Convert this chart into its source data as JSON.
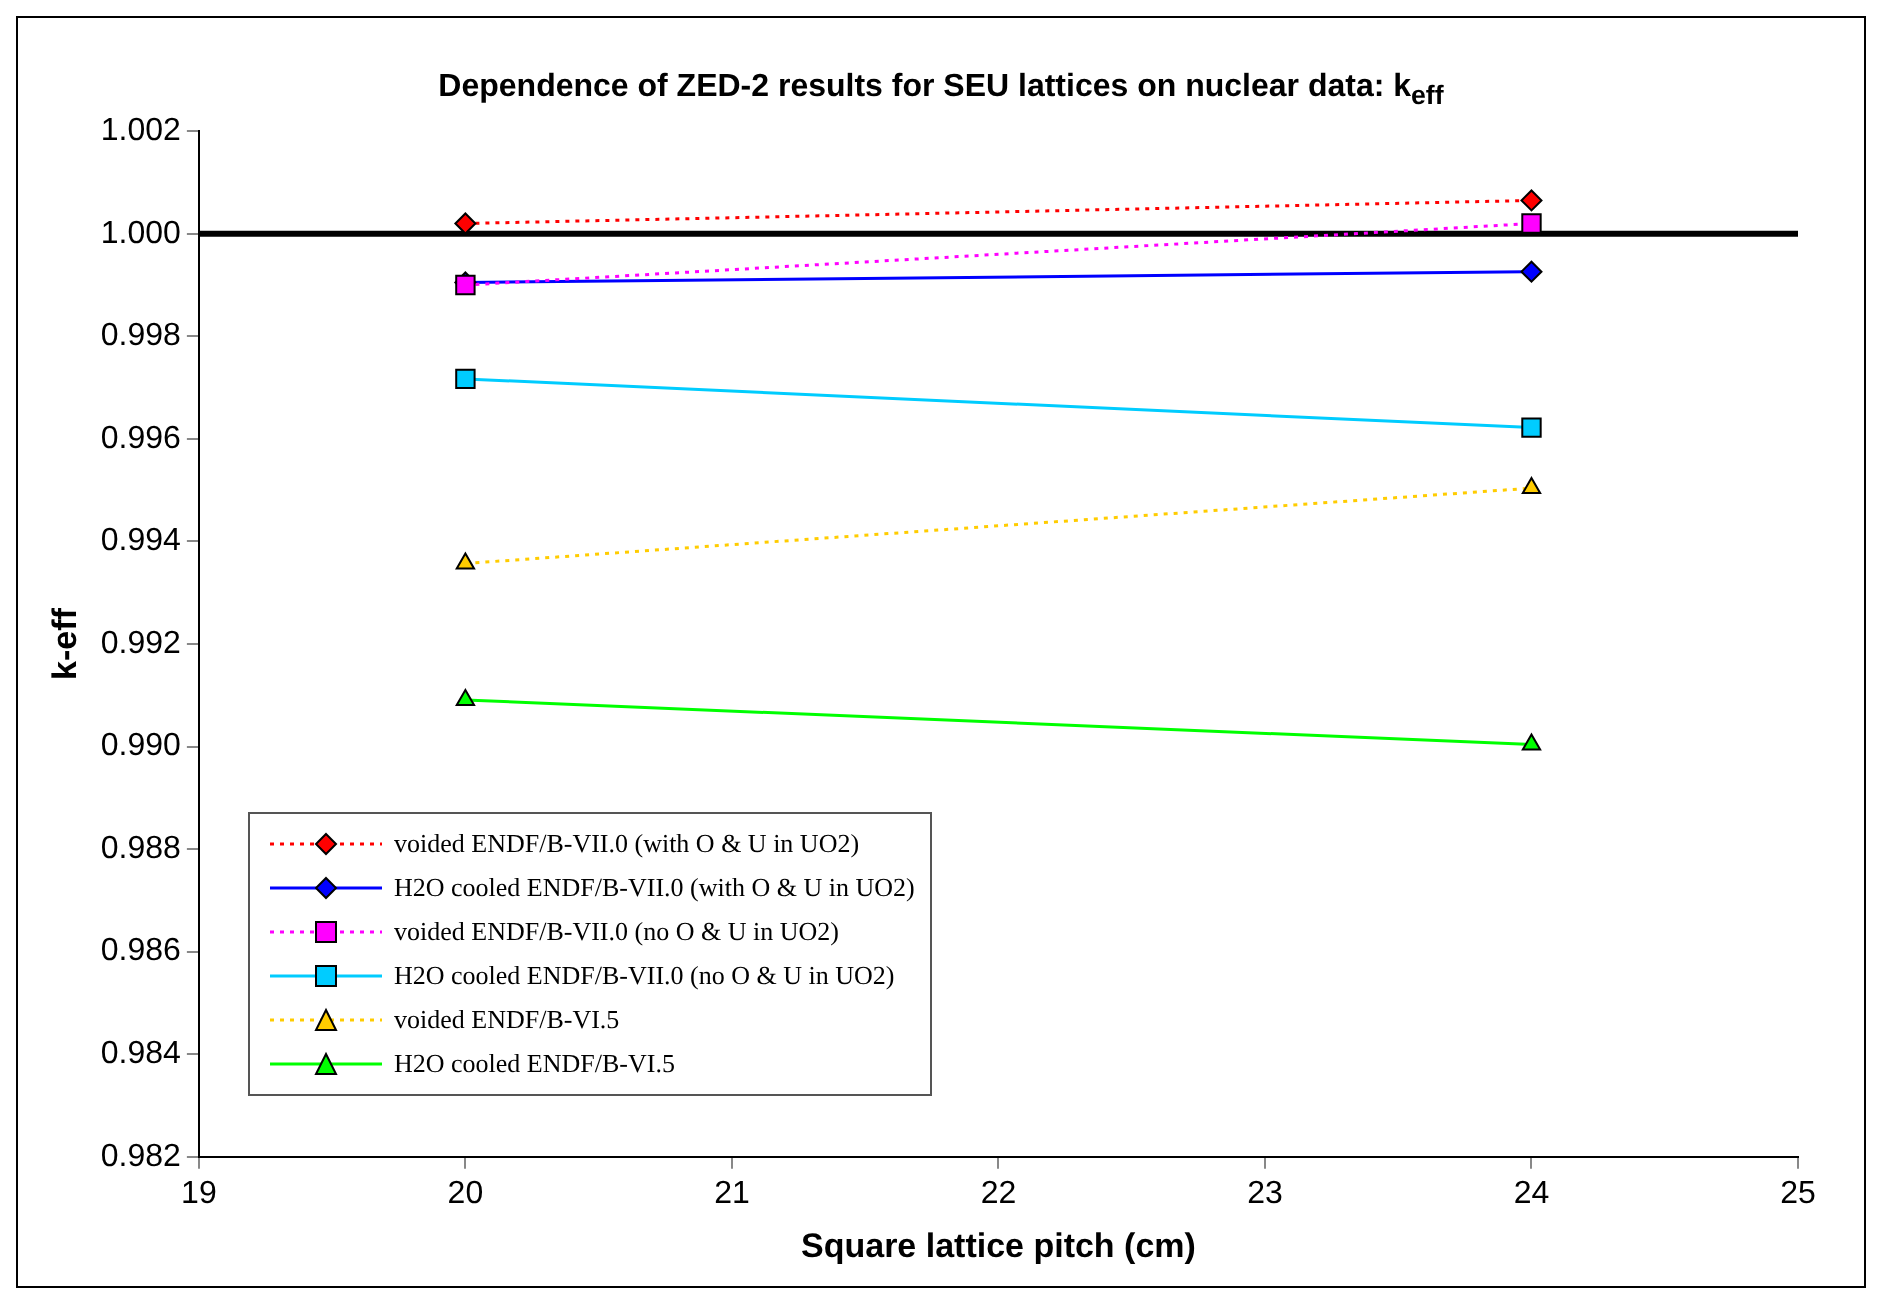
{
  "chart_data": {
    "type": "line",
    "title": "Dependence of ZED-2 results for SEU lattices on nuclear data: k$_{eff}$",
    "xlabel": "Square lattice pitch (cm)",
    "ylabel": "k-eff",
    "x": [
      20,
      24
    ],
    "xlim": [
      19,
      25
    ],
    "xticks": [
      19,
      20,
      21,
      22,
      23,
      24,
      25
    ],
    "ylim": [
      0.982,
      1.002
    ],
    "yticks": [
      0.982,
      0.984,
      0.986,
      0.988,
      {
        "value": 0.99,
        "label": "0.990"
      },
      0.992,
      0.994,
      0.996,
      0.998,
      {
        "value": 1,
        "label": "1.000"
      },
      1.002
    ],
    "grid": false,
    "legend": "bottom left",
    "ref_lines": [
      {
        "axis": "y",
        "value": 1,
        "color": "#000000"
      }
    ],
    "series": [
      {
        "name": "voided ENDF/B-VII.0 (with O & U in UO2)",
        "color": "#ff0000",
        "values": [
          1.0002,
          1.00065
        ],
        "marker": "diamond",
        "line_style": "dotted"
      },
      {
        "name": "H2O cooled ENDF/B-VII.0 (with O & U in UO2)",
        "color": "#0000ff",
        "values": [
          0.99905,
          0.99926
        ],
        "marker": "diamond",
        "line_style": "solid"
      },
      {
        "name": "voided ENDF/B-VII.0 (no O & U in UO2)",
        "color": "#ff00ff",
        "values": [
          0.999,
          1.0002
        ],
        "marker": "square",
        "line_style": "dotted"
      },
      {
        "name": "H2O cooled ENDF/B-VII.0 (no O & U in UO2)",
        "color": "#00ccff",
        "values": [
          0.99717,
          0.99622
        ],
        "marker": "square",
        "line_style": "solid"
      },
      {
        "name": "voided ENDF/B-VI.5",
        "color": "#ffcc00",
        "values": [
          0.99357,
          0.99504
        ],
        "marker": "triangle",
        "line_style": "dotted"
      },
      {
        "name": "H2O cooled ENDF/B-VI.5",
        "color": "#00ff00",
        "values": [
          0.99091,
          0.99004
        ],
        "marker": "triangle",
        "line_style": "solid"
      }
    ]
  }
}
